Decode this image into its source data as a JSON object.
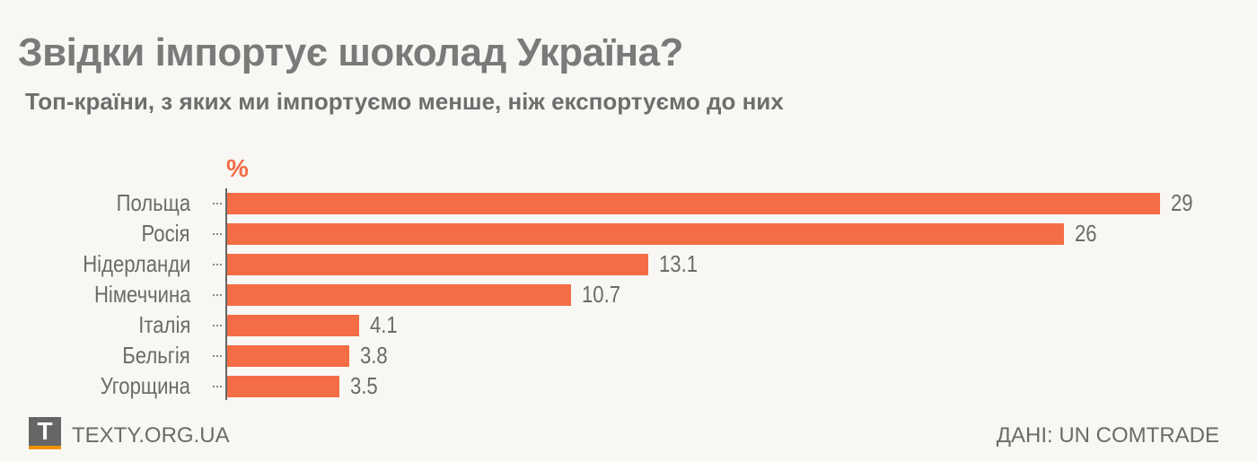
{
  "chart_data": {
    "type": "bar",
    "orientation": "horizontal",
    "title": "Звідки імпортує шоколад Україна?",
    "subtitle": "Топ-країни, з яких ми імпортуємо менше, ніж експортуємо до них",
    "unit_label": "%",
    "categories": [
      "Польща",
      "Росія",
      "Нідерланди",
      "Німеччина",
      "Італія",
      "Бельгія",
      "Угорщина"
    ],
    "values": [
      29,
      26,
      13.1,
      10.7,
      4.1,
      3.8,
      3.5
    ],
    "value_labels": [
      "29",
      "26",
      "13.1",
      "10.7",
      "4.1",
      "3.8",
      "3.5"
    ],
    "xlim": [
      0,
      29
    ],
    "grid": false,
    "bar_color": "#f46d45"
  },
  "footer": {
    "logo_letter": "T",
    "site": "TEXTY.ORG.UA",
    "source": "ДАНІ: UN COMTRADE"
  }
}
